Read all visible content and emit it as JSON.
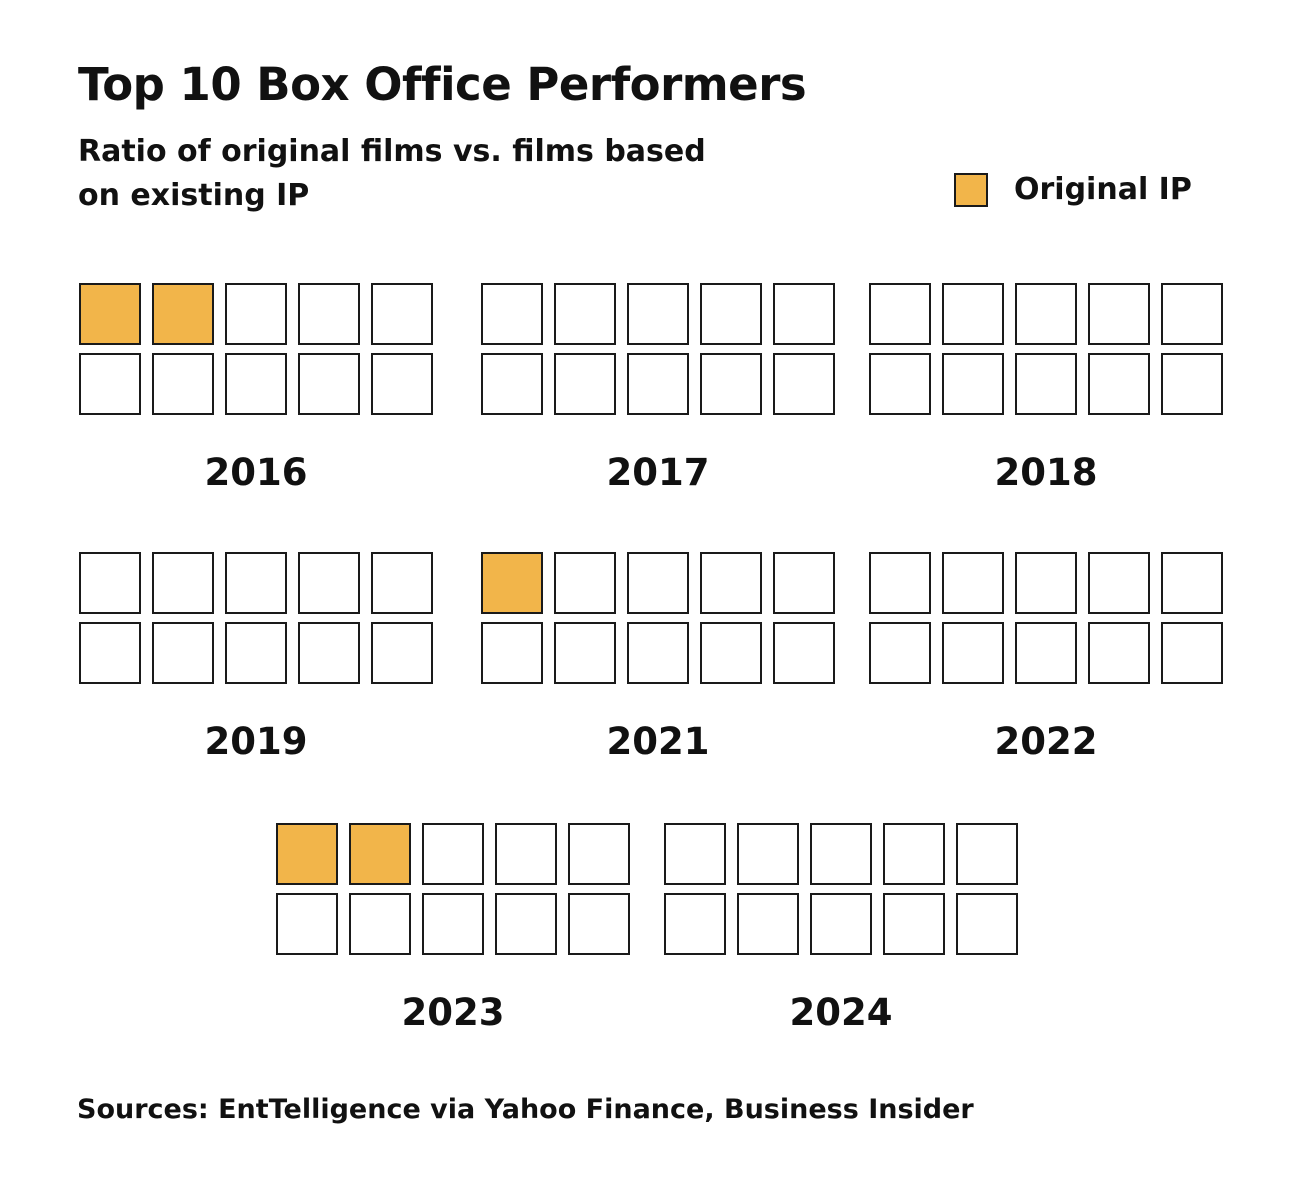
{
  "header": {
    "title": "Top 10 Box Office Performers",
    "subtitle": "Ratio of original films vs. films based on existing IP"
  },
  "legend": {
    "label": "Original IP"
  },
  "colors": {
    "original": "#f2b54a",
    "empty": "#ffffff",
    "border": "#1a1a1a"
  },
  "chart_data": {
    "type": "waffle",
    "title": "Top 10 Box Office Performers",
    "subtitle": "Ratio of original films vs. films based on existing IP",
    "total_per_year": 10,
    "legend": [
      "Original IP"
    ],
    "legend_placement": "top-right",
    "categories": [
      "2016",
      "2017",
      "2018",
      "2019",
      "2021",
      "2022",
      "2023",
      "2024"
    ],
    "series": [
      {
        "name": "Original IP",
        "values": [
          2,
          0,
          0,
          0,
          1,
          0,
          2,
          0
        ]
      }
    ]
  },
  "footer": {
    "source": "Sources: EntTelligence via Yahoo Finance, Business Insider"
  }
}
